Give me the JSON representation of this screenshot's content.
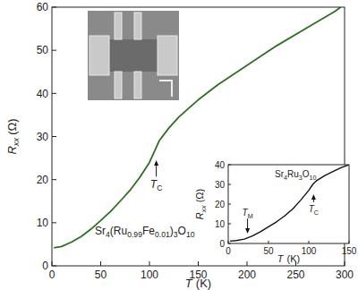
{
  "chart_data": [
    {
      "type": "line",
      "xlabel": {
        "text": "T",
        "unit": "(K)"
      },
      "ylabel": {
        "text": "R",
        "subscript": "xx",
        "unit": "(Ω)"
      },
      "label": "Sr4(Ru0.99Fe0.01)3O10",
      "xlim": [
        0,
        300
      ],
      "xticks": [
        0,
        50,
        100,
        150,
        200,
        250,
        300
      ],
      "ylim": [
        0,
        60
      ],
      "yticks": [
        0,
        10,
        20,
        30,
        40,
        50,
        60
      ],
      "series": [
        {
          "color": "#2e6e22",
          "x": [
            2,
            10,
            20,
            30,
            40,
            50,
            60,
            70,
            80,
            90,
            100,
            105,
            110,
            120,
            130,
            140,
            150,
            170,
            200,
            230,
            260,
            290,
            296
          ],
          "values": [
            4.2,
            4.5,
            5.5,
            6.8,
            8.5,
            10.5,
            12.6,
            15,
            17.5,
            20.5,
            24,
            26.5,
            29,
            32,
            34.5,
            36.5,
            38.5,
            42,
            46.5,
            51,
            55,
            59,
            60
          ]
        }
      ],
      "annotations": [
        {
          "text": "T",
          "subscript": "C",
          "x": 107,
          "y": 24.5,
          "label_y": 18
        }
      ]
    },
    {
      "type": "line",
      "xlabel": {
        "text": "T",
        "unit": "(K)"
      },
      "ylabel": {
        "text": "R",
        "subscript": "xx",
        "unit": "(Ω)"
      },
      "label": "Sr4Ru3O10",
      "xlim": [
        0,
        150
      ],
      "xticks": [
        0,
        50,
        100,
        150
      ],
      "ylim": [
        0,
        40
      ],
      "yticks": [
        0,
        10,
        20,
        30,
        40
      ],
      "series": [
        {
          "color": "#111111",
          "x": [
            2,
            10,
            20,
            25,
            30,
            40,
            50,
            60,
            70,
            80,
            90,
            100,
            105,
            110,
            120,
            130,
            140,
            150
          ],
          "values": [
            1.2,
            1.5,
            2.2,
            3,
            3.8,
            6,
            8.5,
            11,
            14,
            17.5,
            22,
            27,
            30,
            32,
            34.5,
            36.5,
            38.5,
            40
          ]
        }
      ],
      "annotations": [
        {
          "text": "T",
          "subscript": "M",
          "x": 24,
          "y": 5,
          "label_y": 14
        },
        {
          "text": "T",
          "subscript": "C",
          "x": 106,
          "y": 25,
          "label_y": 16
        }
      ]
    }
  ]
}
